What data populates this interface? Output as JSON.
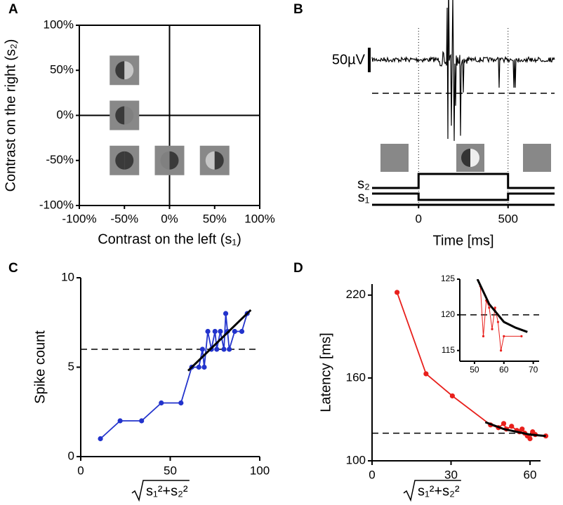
{
  "chart_data": [
    {
      "panel": "A",
      "type": "stimulus-map",
      "xlabel": "Contrast on the left (s₁)",
      "ylabel": "Contrast on the right (s₂)",
      "x": [
        -50,
        -50,
        -50,
        0,
        50
      ],
      "values": [
        50,
        0,
        -50,
        -50,
        -50
      ],
      "xlim": [
        -100,
        100
      ],
      "ylim": [
        -100,
        100
      ],
      "xticks": [
        {
          "value": -100,
          "label": "-100%"
        },
        {
          "value": -50,
          "label": "-50%"
        },
        {
          "value": 0,
          "label": "0%"
        },
        {
          "value": 50,
          "label": "50%"
        },
        {
          "value": 100,
          "label": "100%"
        }
      ],
      "yticks": [
        {
          "value": -100,
          "label": "-100%"
        },
        {
          "value": -50,
          "label": "-50%"
        },
        {
          "value": 0,
          "label": "0%"
        },
        {
          "value": 50,
          "label": "50%"
        },
        {
          "value": 100,
          "label": "100%"
        }
      ]
    },
    {
      "panel": "B",
      "type": "trace",
      "scale_bar_label": "50µV",
      "stimulus_labels": [
        "s₂",
        "s₁"
      ],
      "xlabel": "Time [ms]",
      "xlim": [
        -260,
        760
      ],
      "xticks": [
        0,
        500
      ]
    },
    {
      "panel": "C",
      "type": "line",
      "ylabel": "Spike count",
      "xlabel": "s₁²+s₂²",
      "series": [
        {
          "color": "#2233cc",
          "x": [
            11,
            22,
            34,
            45,
            56,
            62,
            66,
            68,
            69,
            71,
            73,
            75,
            76,
            78,
            80,
            81,
            82,
            83,
            86,
            90,
            93
          ],
          "values": [
            1,
            2,
            2,
            3,
            3,
            5,
            5,
            6,
            5,
            7,
            6,
            7,
            6,
            7,
            6,
            8,
            7,
            6,
            7,
            7,
            8
          ]
        },
        {
          "color": "#000000",
          "x": [
            60,
            95
          ],
          "values": [
            4.8,
            8.2
          ]
        }
      ],
      "hline": 6,
      "xlim": [
        0,
        100
      ],
      "ylim": [
        0,
        10
      ],
      "xticks": [
        0,
        50,
        100
      ],
      "yticks": [
        0,
        5,
        10
      ]
    },
    {
      "panel": "D",
      "type": "line",
      "ylabel": "Latency [ms]",
      "xlabel": "s₁²+s₂²",
      "series": [
        {
          "color": "#e8201c",
          "x": [
            9.5,
            20.5,
            30.5,
            45,
            48,
            50,
            51,
            53,
            55,
            56,
            57,
            58,
            59,
            60,
            61,
            62,
            66
          ],
          "values": [
            222,
            163,
            147,
            126,
            124,
            127,
            123,
            125,
            122,
            121,
            123,
            120,
            118,
            116,
            121,
            119,
            118
          ]
        },
        {
          "color": "#000000",
          "x": [
            43,
            50,
            55,
            60,
            66
          ],
          "values": [
            128,
            123,
            121,
            119,
            118
          ]
        }
      ],
      "hline": 120,
      "xlim": [
        0,
        64
      ],
      "ylim": [
        100,
        228
      ],
      "xticks": [
        0,
        30,
        60
      ],
      "yticks": [
        100,
        160,
        220
      ],
      "inset": {
        "type": "line",
        "series": [
          {
            "color": "#e8201c",
            "x": [
              52,
              53,
              54,
              55,
              56,
              57,
              58,
              59,
              60,
              66
            ],
            "values": [
              124,
              117,
              122,
              121,
              118,
              121,
              119,
              115,
              117,
              117
            ]
          },
          {
            "color": "#000000",
            "x": [
              51,
              55,
              60,
              64,
              68
            ],
            "values": [
              125,
              121.5,
              119,
              118.2,
              117.6
            ]
          }
        ],
        "hline": 120,
        "xlim": [
          45,
          72
        ],
        "ylim": [
          113.5,
          125
        ],
        "xticks": [
          50,
          60,
          70
        ],
        "yticks": [
          115,
          120,
          125
        ]
      }
    }
  ]
}
